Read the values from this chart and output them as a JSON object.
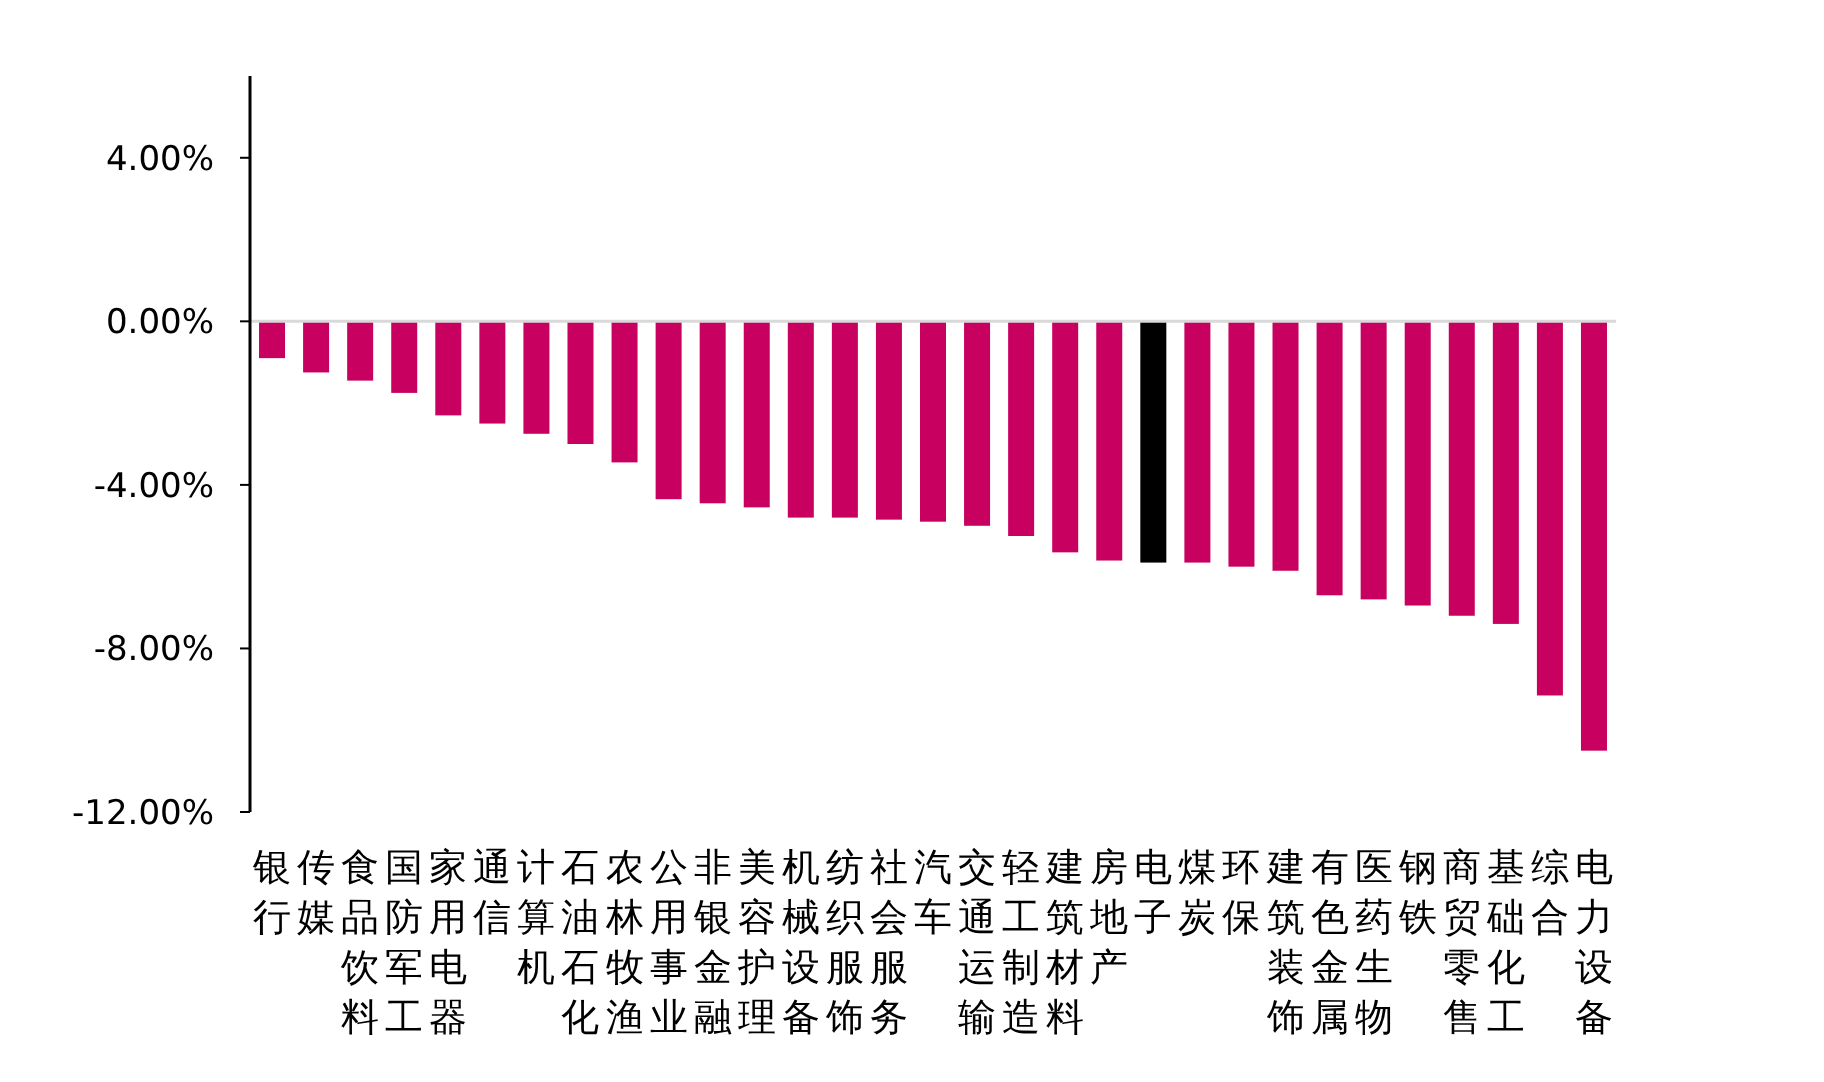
{
  "chart_data": {
    "type": "bar",
    "categories": [
      "银行",
      "传媒",
      "食品饮料",
      "国防军工",
      "家用电器",
      "通信",
      "计算机",
      "石油石化",
      "农林牧渔",
      "公用事业",
      "非银金融",
      "美容护理",
      "机械设备",
      "纺织服饰",
      "社会服务",
      "汽车",
      "交通运输",
      "轻工制造",
      "建筑材料",
      "房地产",
      "电子",
      "煤炭",
      "环保",
      "建筑装饰",
      "有色金属",
      "医药生物",
      "钢铁",
      "商贸零售",
      "基础化工",
      "综合",
      "电力设备"
    ],
    "values": [
      -0.9,
      -1.25,
      -1.45,
      -1.75,
      -2.3,
      -2.5,
      -2.75,
      -3.0,
      -3.45,
      -4.35,
      -4.45,
      -4.55,
      -4.8,
      -4.8,
      -4.85,
      -4.9,
      -5.0,
      -5.25,
      -5.65,
      -5.85,
      -5.9,
      -5.9,
      -6.0,
      -6.1,
      -6.7,
      -6.8,
      -6.95,
      -7.2,
      -7.4,
      -9.15,
      -10.5
    ],
    "colors": [
      "#c8005f",
      "#c8005f",
      "#c8005f",
      "#c8005f",
      "#c8005f",
      "#c8005f",
      "#c8005f",
      "#c8005f",
      "#c8005f",
      "#c8005f",
      "#c8005f",
      "#c8005f",
      "#c8005f",
      "#c8005f",
      "#c8005f",
      "#c8005f",
      "#c8005f",
      "#c8005f",
      "#c8005f",
      "#c8005f",
      "#000000",
      "#c8005f",
      "#c8005f",
      "#c8005f",
      "#c8005f",
      "#c8005f",
      "#c8005f",
      "#c8005f",
      "#c8005f",
      "#c8005f",
      "#c8005f"
    ],
    "ylim": [
      -12,
      6
    ],
    "yticks": [
      {
        "value": 4,
        "label": "4.00%"
      },
      {
        "value": 0,
        "label": "0.00%"
      },
      {
        "value": -4,
        "label": "-4.00%"
      },
      {
        "value": -8,
        "label": "-8.00%"
      },
      {
        "value": -12,
        "label": "-12.00%"
      }
    ]
  }
}
